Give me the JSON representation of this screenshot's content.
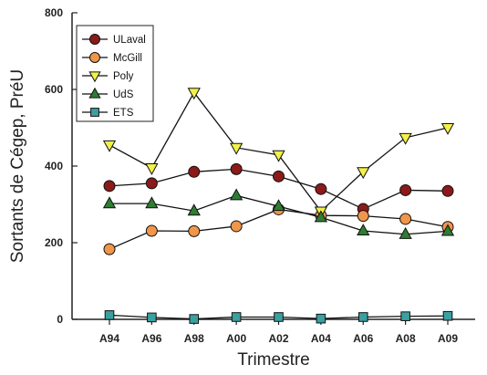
{
  "chart_data": {
    "type": "line",
    "xlabel": "Trimestre",
    "ylabel": "Sortants de Cégep, PréU",
    "categories": [
      "A94",
      "A96",
      "A98",
      "A00",
      "A02",
      "A04",
      "A06",
      "A08",
      "A09"
    ],
    "ylim": [
      0,
      800
    ],
    "yticks": [
      0,
      200,
      400,
      600,
      800
    ],
    "grid": false,
    "legend_position": "top-left",
    "series": [
      {
        "name": "ULaval",
        "marker": "circle",
        "color": "#8b1a1a",
        "values": [
          348,
          355,
          385,
          392,
          373,
          340,
          288,
          337,
          335
        ]
      },
      {
        "name": "McGill",
        "marker": "circle",
        "color": "#f0964a",
        "values": [
          183,
          231,
          230,
          243,
          287,
          271,
          270,
          262,
          241
        ]
      },
      {
        "name": "Poly",
        "marker": "triangle-down",
        "color": "#f2f04a",
        "values": [
          455,
          395,
          592,
          448,
          429,
          282,
          385,
          474,
          500
        ]
      },
      {
        "name": "UdS",
        "marker": "triangle-up",
        "color": "#2e7d32",
        "values": [
          302,
          302,
          283,
          323,
          295,
          266,
          231,
          222,
          230
        ]
      },
      {
        "name": "ETS",
        "marker": "square",
        "color": "#3aa0a0",
        "values": [
          11,
          5,
          1,
          6,
          6,
          2,
          6,
          8,
          9
        ]
      }
    ]
  }
}
